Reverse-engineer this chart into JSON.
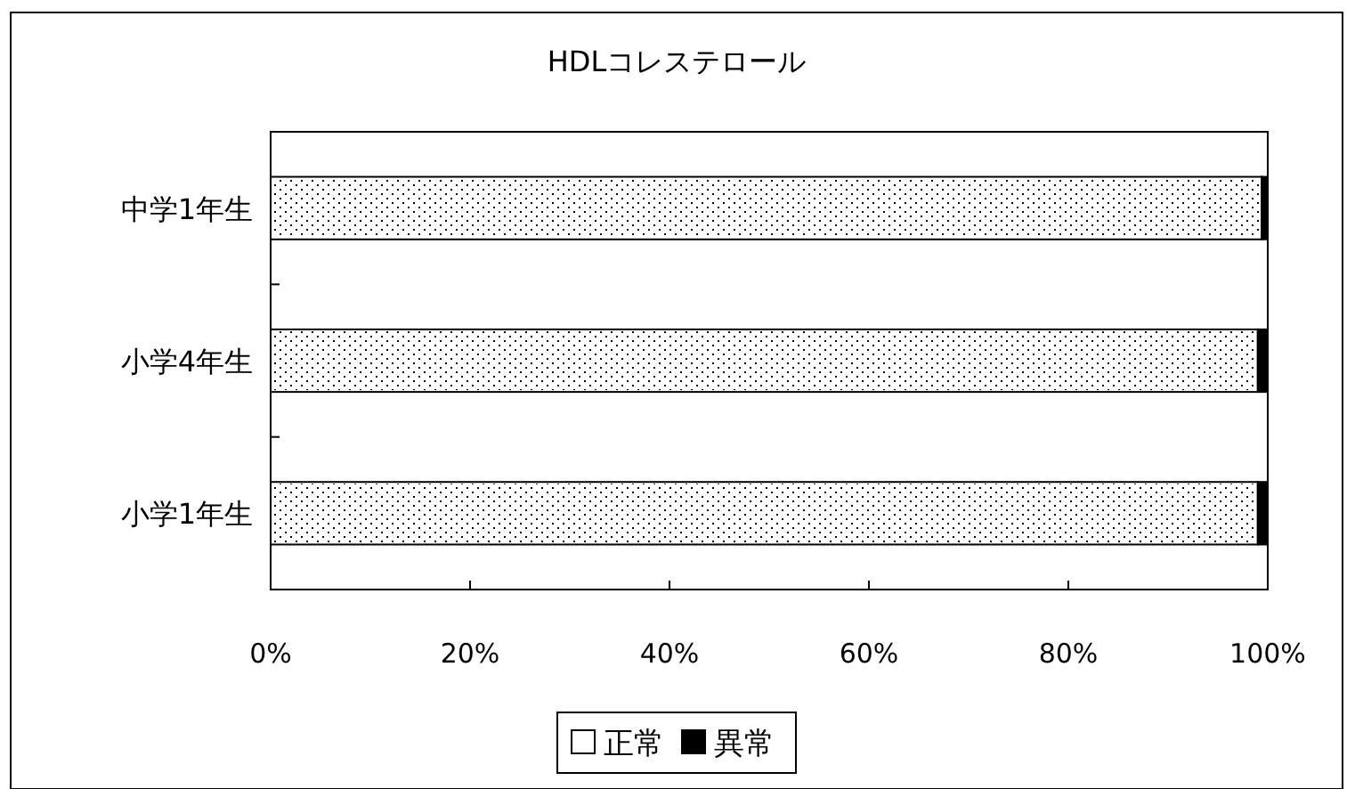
{
  "chart_data": {
    "type": "bar",
    "title": "HDLコレステロール",
    "orientation": "horizontal",
    "stacked": true,
    "categories": [
      "中学1年生",
      "小学4年生",
      "小学1年生"
    ],
    "series": [
      {
        "name": "正常",
        "color": "#ffffff",
        "values": [
          99.4,
          99.0,
          99.0
        ]
      },
      {
        "name": "異常",
        "color": "#000000",
        "values": [
          0.6,
          1.0,
          1.0
        ]
      }
    ],
    "xlim": [
      0,
      100
    ],
    "xticks": [
      {
        "value": 0,
        "label": "0%"
      },
      {
        "value": 20,
        "label": "20%"
      },
      {
        "value": 40,
        "label": "40%"
      },
      {
        "value": 60,
        "label": "60%"
      },
      {
        "value": 80,
        "label": "80%"
      },
      {
        "value": 100,
        "label": "100%"
      }
    ],
    "grid": false,
    "legend": "bottom"
  }
}
